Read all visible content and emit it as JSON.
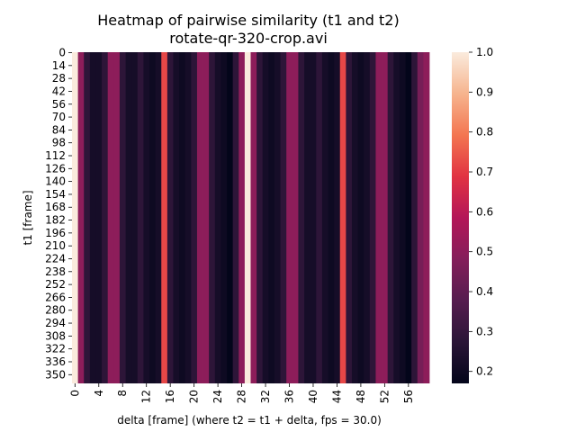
{
  "chart_data": {
    "type": "heatmap",
    "title": "Heatmap of pairwise similarity (t1 and t2)",
    "subtitle": "rotate-qr-320-crop.avi",
    "xlabel": "delta [frame] (where t2 = t1 + delta, fps = 30.0)",
    "ylabel": "t1 [frame]",
    "x_tick_labels": [
      "0",
      "4",
      "8",
      "12",
      "16",
      "20",
      "24",
      "28",
      "32",
      "36",
      "40",
      "44",
      "48",
      "52",
      "56"
    ],
    "y_tick_labels": [
      "0",
      "14",
      "28",
      "42",
      "56",
      "70",
      "84",
      "98",
      "112",
      "126",
      "140",
      "154",
      "168",
      "182",
      "196",
      "210",
      "224",
      "238",
      "252",
      "266",
      "280",
      "294",
      "308",
      "322",
      "336",
      "350"
    ],
    "delta": [
      0,
      1,
      2,
      3,
      4,
      5,
      6,
      7,
      8,
      9,
      10,
      11,
      12,
      13,
      14,
      15,
      16,
      17,
      18,
      19,
      20,
      21,
      22,
      23,
      24,
      25,
      26,
      27,
      28,
      29,
      30,
      31,
      32,
      33,
      34,
      35,
      36,
      37,
      38,
      39,
      40,
      41,
      42,
      43,
      44,
      45,
      46,
      47,
      48,
      49,
      50,
      51,
      52,
      53,
      54,
      55,
      56,
      57,
      58,
      59
    ],
    "similarity_by_delta": [
      1.0,
      0.5,
      0.28,
      0.22,
      0.22,
      0.28,
      0.5,
      0.5,
      0.28,
      0.22,
      0.22,
      0.28,
      0.22,
      0.2,
      0.22,
      0.72,
      0.28,
      0.22,
      0.2,
      0.22,
      0.28,
      0.5,
      0.5,
      0.28,
      0.22,
      0.2,
      0.17,
      0.28,
      0.5,
      1.0,
      0.5,
      0.28,
      0.22,
      0.2,
      0.22,
      0.28,
      0.5,
      0.5,
      0.28,
      0.22,
      0.22,
      0.28,
      0.22,
      0.2,
      0.22,
      0.72,
      0.28,
      0.22,
      0.2,
      0.22,
      0.28,
      0.5,
      0.5,
      0.28,
      0.22,
      0.2,
      0.17,
      0.28,
      0.45,
      0.5
    ],
    "colorbar": {
      "range": [
        0.17,
        1.0
      ],
      "tick_labels": [
        "0.2",
        "0.3",
        "0.4",
        "0.5",
        "0.6",
        "0.7",
        "0.8",
        "0.9",
        "1.0"
      ],
      "tick_values": [
        0.2,
        0.3,
        0.4,
        0.5,
        0.6,
        0.7,
        0.8,
        0.9,
        1.0
      ]
    },
    "colormap": "rocket",
    "colormap_stops": [
      "#03051a",
      "#2a1537",
      "#561d4f",
      "#841e5a",
      "#b41658",
      "#e13342",
      "#f37651",
      "#f6b48e",
      "#faebdd"
    ]
  }
}
